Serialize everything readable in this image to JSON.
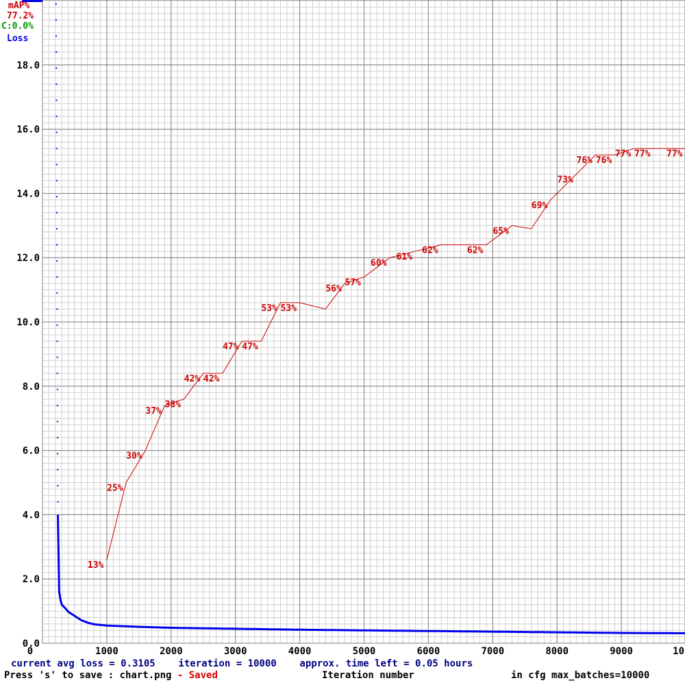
{
  "legend": {
    "map_title": "mAP%",
    "map_value": "77.2%",
    "class_text": "C:0.0%",
    "loss_title": "Loss"
  },
  "footer": {
    "status_line": "current avg loss = 0.3105    iteration = 10000    approx. time left = 0.05 hours",
    "save_hint": "Press 's' to save : chart.png",
    "saved_label": " - Saved",
    "xlabel": "Iteration number",
    "max_batches": "in cfg max_batches=10000"
  },
  "colors": {
    "map_line": "#cc0000",
    "loss_line": "#0000ee",
    "legend_class": "#009900",
    "grid_major": "#808080",
    "grid_minor": "#d0d0d0"
  },
  "chart_data": {
    "type": "line",
    "xlim": [
      0,
      10000
    ],
    "ylim": [
      0,
      20
    ],
    "x_ticks": [
      "0",
      "1000",
      "2000",
      "3000",
      "4000",
      "5000",
      "6000",
      "7000",
      "8000",
      "9000",
      "10"
    ],
    "y_ticks": [
      "0.0",
      "2.0",
      "4.0",
      "6.0",
      "8.0",
      "10.0",
      "12.0",
      "14.0",
      "16.0",
      "18.0"
    ],
    "grid": true,
    "series": [
      {
        "name": "Loss",
        "x": [
          210,
          215,
          220,
          225,
          230,
          235,
          240,
          250,
          260,
          280,
          300,
          350,
          400,
          500,
          600,
          700,
          800,
          1000,
          1500,
          2000,
          3000,
          4000,
          5000,
          6000,
          7000,
          8000,
          9000,
          10000
        ],
        "y": [
          20.0,
          18.3,
          15.5,
          12.0,
          9.0,
          6.0,
          4.0,
          2.0,
          1.6,
          1.35,
          1.2,
          1.1,
          0.98,
          0.85,
          0.72,
          0.64,
          0.59,
          0.55,
          0.51,
          0.48,
          0.45,
          0.42,
          0.4,
          0.38,
          0.36,
          0.34,
          0.32,
          0.31
        ]
      },
      {
        "name": "mAP%",
        "x": [
          1000,
          1300,
          1600,
          1900,
          2200,
          2500,
          2800,
          3100,
          3400,
          3700,
          4000,
          4400,
          4700,
          5000,
          5400,
          5800,
          6200,
          6600,
          6900,
          7300,
          7600,
          7900,
          8300,
          8600,
          8900,
          9200,
          9500,
          10000
        ],
        "y": [
          13,
          25,
          30,
          37,
          38,
          42,
          42,
          47,
          47,
          53,
          53,
          52,
          56,
          57,
          60,
          61,
          62,
          62,
          62,
          65,
          64.5,
          69,
          73,
          76,
          76,
          77,
          77,
          77
        ],
        "labels": [
          "13%",
          "25%",
          "30%",
          "37%",
          "38%",
          "42%",
          "42%",
          "47%",
          "47%",
          "53%",
          "53%",
          "",
          "56%",
          "57%",
          "60%",
          "61%",
          "62%",
          "",
          "62%",
          "65%",
          "",
          "69%",
          "73%",
          "76%",
          "76%",
          "77%",
          "77%",
          "77%"
        ]
      }
    ]
  }
}
